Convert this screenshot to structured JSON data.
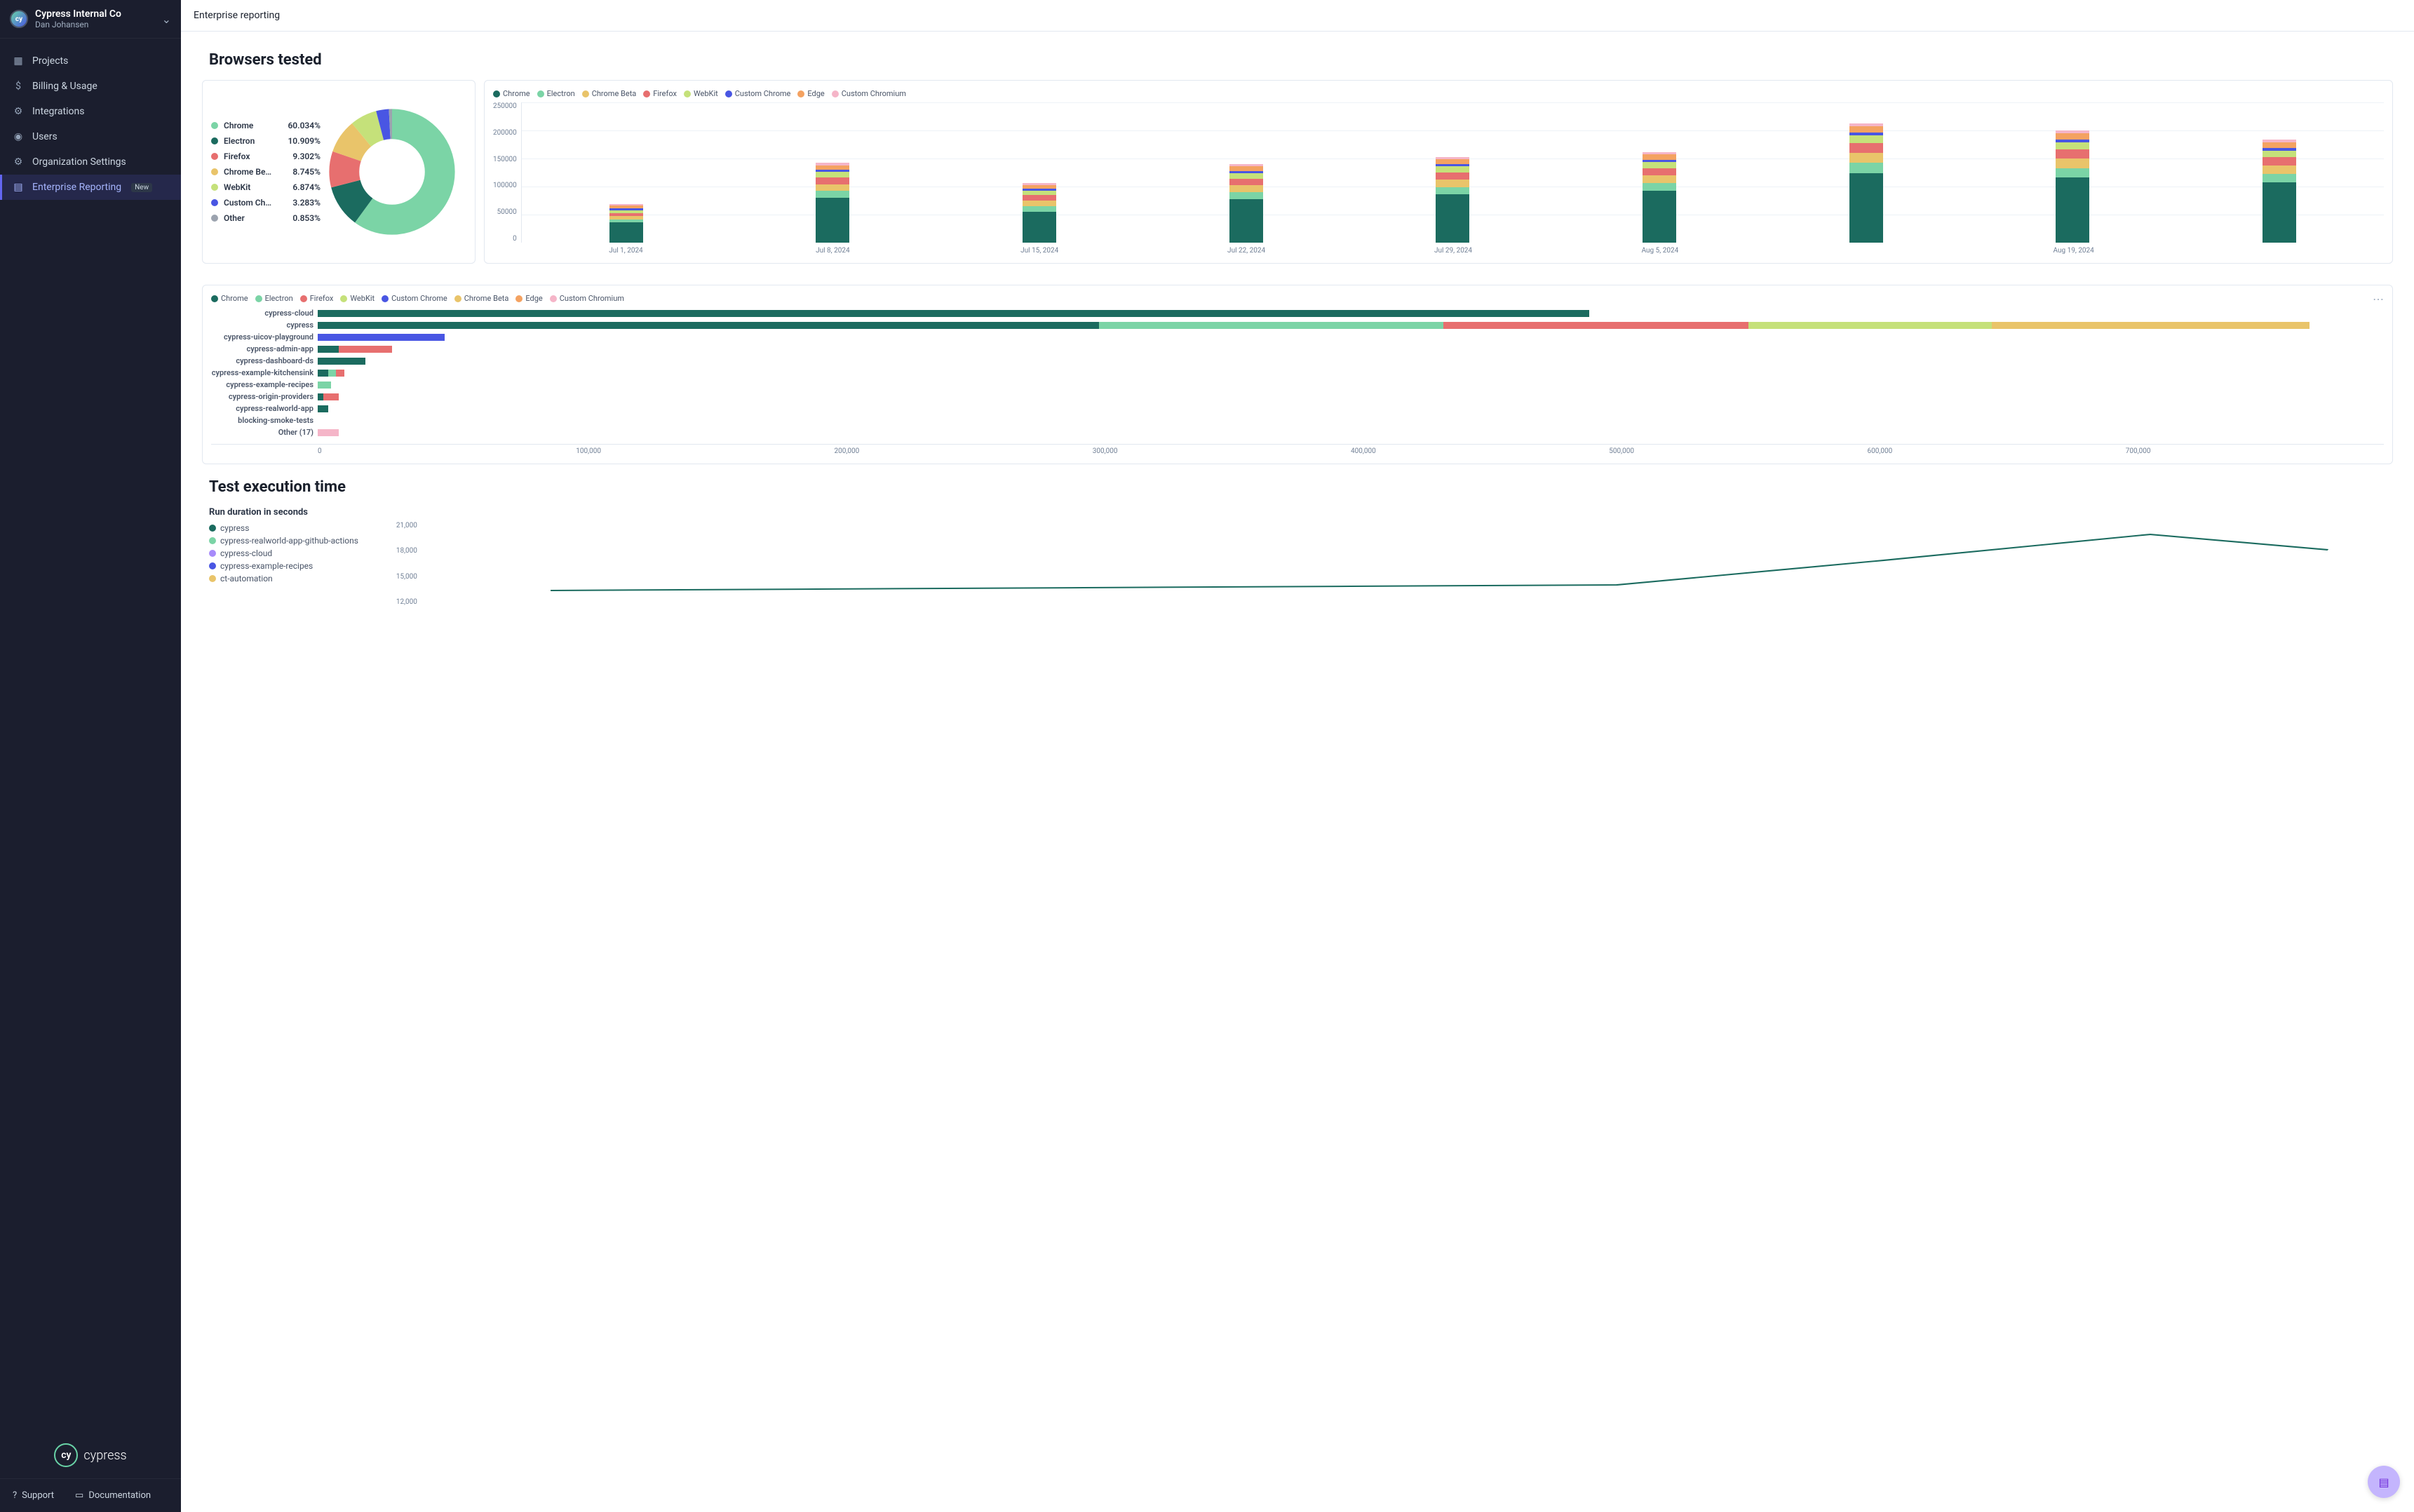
{
  "org": {
    "name": "Cypress Internal Co",
    "user": "Dan Johansen",
    "logo_text": "cy"
  },
  "nav": {
    "items": [
      {
        "label": "Projects",
        "icon": "▦"
      },
      {
        "label": "Billing & Usage",
        "icon": "$"
      },
      {
        "label": "Integrations",
        "icon": "⚙"
      },
      {
        "label": "Users",
        "icon": "◉"
      },
      {
        "label": "Organization Settings",
        "icon": "⚙"
      },
      {
        "label": "Enterprise Reporting",
        "icon": "▤",
        "badge": "New",
        "active": true
      }
    ]
  },
  "footer": {
    "support": "Support",
    "docs": "Documentation"
  },
  "brand": {
    "logo_text": "cy",
    "word": "cypress"
  },
  "page": {
    "title": "Enterprise reporting"
  },
  "section1": {
    "title": "Browsers tested"
  },
  "palette": {
    "chrome": "#1b6b5f",
    "electron": "#7bd4a6",
    "chrome_beta": "#e9c46a",
    "firefox": "#e76f6f",
    "webkit": "#c5e17a",
    "custom_chrome": "#4956e3",
    "edge": "#f4a261",
    "custom_chromium": "#f5b5c8",
    "other": "#9ca3af"
  },
  "donut": {
    "items": [
      {
        "label": "Chrome",
        "pct": "60.034%",
        "val": 60.034,
        "color": "#7bd4a6"
      },
      {
        "label": "Electron",
        "pct": "10.909%",
        "val": 10.909,
        "color": "#1b6b5f"
      },
      {
        "label": "Firefox",
        "pct": "9.302%",
        "val": 9.302,
        "color": "#e76f6f"
      },
      {
        "label": "Chrome Be…",
        "pct": "8.745%",
        "val": 8.745,
        "color": "#e9c46a"
      },
      {
        "label": "WebKit",
        "pct": "6.874%",
        "val": 6.874,
        "color": "#c5e17a"
      },
      {
        "label": "Custom Ch…",
        "pct": "3.283%",
        "val": 3.283,
        "color": "#4956e3"
      },
      {
        "label": "Other",
        "pct": "0.853%",
        "val": 0.853,
        "color": "#9ca3af"
      }
    ]
  },
  "stacked": {
    "legend": [
      "Chrome",
      "Electron",
      "Chrome Beta",
      "Firefox",
      "WebKit",
      "Custom Chrome",
      "Edge",
      "Custom Chromium"
    ],
    "legend_colors": [
      "#1b6b5f",
      "#7bd4a6",
      "#e9c46a",
      "#e76f6f",
      "#c5e17a",
      "#4956e3",
      "#f4a261",
      "#f5b5c8"
    ],
    "y_ticks": [
      "250000",
      "200000",
      "150000",
      "100000",
      "50000",
      "0"
    ],
    "y_max": 250000,
    "x_labels": [
      "Jul 1, 2024",
      "Jul 8, 2024",
      "Jul 15, 2024",
      "Jul 22, 2024",
      "Jul 29, 2024",
      "Aug 5, 2024",
      "",
      "Aug 19, 2024",
      ""
    ],
    "bars": [
      {
        "segs": [
          {
            "c": "#1b6b5f",
            "v": 36000
          },
          {
            "c": "#7bd4a6",
            "v": 5000
          },
          {
            "c": "#e9c46a",
            "v": 6000
          },
          {
            "c": "#e76f6f",
            "v": 6000
          },
          {
            "c": "#c5e17a",
            "v": 5000
          },
          {
            "c": "#4956e3",
            "v": 3000
          },
          {
            "c": "#f4a261",
            "v": 5000
          },
          {
            "c": "#f5b5c8",
            "v": 3000
          }
        ]
      },
      {
        "segs": [
          {
            "c": "#1b6b5f",
            "v": 80000
          },
          {
            "c": "#7bd4a6",
            "v": 12000
          },
          {
            "c": "#e9c46a",
            "v": 12000
          },
          {
            "c": "#e76f6f",
            "v": 12000
          },
          {
            "c": "#c5e17a",
            "v": 10000
          },
          {
            "c": "#4956e3",
            "v": 4000
          },
          {
            "c": "#f4a261",
            "v": 8000
          },
          {
            "c": "#f5b5c8",
            "v": 4000
          }
        ]
      },
      {
        "segs": [
          {
            "c": "#1b6b5f",
            "v": 55000
          },
          {
            "c": "#7bd4a6",
            "v": 10000
          },
          {
            "c": "#e9c46a",
            "v": 10000
          },
          {
            "c": "#e76f6f",
            "v": 10000
          },
          {
            "c": "#c5e17a",
            "v": 8000
          },
          {
            "c": "#4956e3",
            "v": 3000
          },
          {
            "c": "#f4a261",
            "v": 7000
          },
          {
            "c": "#f5b5c8",
            "v": 3000
          }
        ]
      },
      {
        "segs": [
          {
            "c": "#1b6b5f",
            "v": 78000
          },
          {
            "c": "#7bd4a6",
            "v": 12000
          },
          {
            "c": "#e9c46a",
            "v": 12000
          },
          {
            "c": "#e76f6f",
            "v": 12000
          },
          {
            "c": "#c5e17a",
            "v": 10000
          },
          {
            "c": "#4956e3",
            "v": 4000
          },
          {
            "c": "#f4a261",
            "v": 8000
          },
          {
            "c": "#f5b5c8",
            "v": 4000
          }
        ]
      },
      {
        "segs": [
          {
            "c": "#1b6b5f",
            "v": 86000
          },
          {
            "c": "#7bd4a6",
            "v": 13000
          },
          {
            "c": "#e9c46a",
            "v": 13000
          },
          {
            "c": "#e76f6f",
            "v": 13000
          },
          {
            "c": "#c5e17a",
            "v": 11000
          },
          {
            "c": "#4956e3",
            "v": 4000
          },
          {
            "c": "#f4a261",
            "v": 9000
          },
          {
            "c": "#f5b5c8",
            "v": 4000
          }
        ]
      },
      {
        "segs": [
          {
            "c": "#1b6b5f",
            "v": 92000
          },
          {
            "c": "#7bd4a6",
            "v": 14000
          },
          {
            "c": "#e9c46a",
            "v": 14000
          },
          {
            "c": "#e76f6f",
            "v": 13000
          },
          {
            "c": "#c5e17a",
            "v": 11000
          },
          {
            "c": "#4956e3",
            "v": 4000
          },
          {
            "c": "#f4a261",
            "v": 9000
          },
          {
            "c": "#f5b5c8",
            "v": 4000
          }
        ]
      },
      {
        "segs": [
          {
            "c": "#1b6b5f",
            "v": 124000
          },
          {
            "c": "#7bd4a6",
            "v": 18000
          },
          {
            "c": "#e9c46a",
            "v": 18000
          },
          {
            "c": "#e76f6f",
            "v": 17000
          },
          {
            "c": "#c5e17a",
            "v": 14000
          },
          {
            "c": "#4956e3",
            "v": 5000
          },
          {
            "c": "#f4a261",
            "v": 12000
          },
          {
            "c": "#f5b5c8",
            "v": 5000
          }
        ]
      },
      {
        "segs": [
          {
            "c": "#1b6b5f",
            "v": 116000
          },
          {
            "c": "#7bd4a6",
            "v": 17000
          },
          {
            "c": "#e9c46a",
            "v": 17000
          },
          {
            "c": "#e76f6f",
            "v": 16000
          },
          {
            "c": "#c5e17a",
            "v": 13000
          },
          {
            "c": "#4956e3",
            "v": 5000
          },
          {
            "c": "#f4a261",
            "v": 11000
          },
          {
            "c": "#f5b5c8",
            "v": 5000
          }
        ]
      },
      {
        "segs": [
          {
            "c": "#1b6b5f",
            "v": 108000
          },
          {
            "c": "#7bd4a6",
            "v": 15000
          },
          {
            "c": "#e9c46a",
            "v": 15000
          },
          {
            "c": "#e76f6f",
            "v": 14000
          },
          {
            "c": "#c5e17a",
            "v": 12000
          },
          {
            "c": "#4956e3",
            "v": 5000
          },
          {
            "c": "#f4a261",
            "v": 10000
          },
          {
            "c": "#f5b5c8",
            "v": 5000
          }
        ]
      }
    ]
  },
  "hbar": {
    "legend": [
      "Chrome",
      "Electron",
      "Firefox",
      "WebKit",
      "Custom Chrome",
      "Chrome Beta",
      "Edge",
      "Custom Chromium"
    ],
    "legend_colors": [
      "#1b6b5f",
      "#7bd4a6",
      "#e76f6f",
      "#c5e17a",
      "#4956e3",
      "#e9c46a",
      "#f4a261",
      "#f5b5c8"
    ],
    "x_ticks": [
      "0",
      "100,000",
      "200,000",
      "300,000",
      "400,000",
      "500,000",
      "600,000",
      "700,000"
    ],
    "x_max": 780000,
    "rows": [
      {
        "label": "cypress-cloud",
        "segs": [
          {
            "c": "#1b6b5f",
            "v": 480000
          }
        ]
      },
      {
        "label": "cypress",
        "segs": [
          {
            "c": "#1b6b5f",
            "v": 295000
          },
          {
            "c": "#7bd4a6",
            "v": 130000
          },
          {
            "c": "#e76f6f",
            "v": 115000
          },
          {
            "c": "#c5e17a",
            "v": 92000
          },
          {
            "c": "#e9c46a",
            "v": 120000
          }
        ]
      },
      {
        "label": "cypress-uicov-playground",
        "segs": [
          {
            "c": "#4956e3",
            "v": 48000
          }
        ]
      },
      {
        "label": "cypress-admin-app",
        "segs": [
          {
            "c": "#1b6b5f",
            "v": 8000
          },
          {
            "c": "#e76f6f",
            "v": 20000
          }
        ]
      },
      {
        "label": "cypress-dashboard-ds",
        "segs": [
          {
            "c": "#1b6b5f",
            "v": 18000
          }
        ]
      },
      {
        "label": "cypress-example-kitchensink",
        "segs": [
          {
            "c": "#1b6b5f",
            "v": 4000
          },
          {
            "c": "#7bd4a6",
            "v": 3000
          },
          {
            "c": "#e76f6f",
            "v": 3000
          }
        ]
      },
      {
        "label": "cypress-example-recipes",
        "segs": [
          {
            "c": "#7bd4a6",
            "v": 5000
          }
        ]
      },
      {
        "label": "cypress-origin-providers",
        "segs": [
          {
            "c": "#1b6b5f",
            "v": 2000
          },
          {
            "c": "#e76f6f",
            "v": 6000
          }
        ]
      },
      {
        "label": "cypress-realworld-app",
        "segs": [
          {
            "c": "#1b6b5f",
            "v": 4000
          }
        ]
      },
      {
        "label": "blocking-smoke-tests",
        "segs": []
      },
      {
        "label": "Other (17)",
        "segs": [
          {
            "c": "#f5b5c8",
            "v": 8000
          }
        ]
      }
    ]
  },
  "section2": {
    "title": "Test execution time",
    "subtitle": "Run duration in seconds"
  },
  "exec": {
    "legend": [
      {
        "label": "cypress",
        "color": "#1b6b5f"
      },
      {
        "label": "cypress-realworld-app-github-actions",
        "color": "#7bd4a6"
      },
      {
        "label": "cypress-cloud",
        "color": "#a78bfa"
      },
      {
        "label": "cypress-example-recipes",
        "color": "#4956e3"
      },
      {
        "label": "ct-automation",
        "color": "#e9c46a"
      }
    ],
    "y_ticks": [
      "21,000",
      "18,000",
      "15,000",
      "12,000"
    ],
    "line_path": "M 60 98 L 180 96 L 300 94 L 420 92 L 540 90 L 660 55 L 780 18 L 860 40",
    "line_color": "#1b6b5f"
  }
}
